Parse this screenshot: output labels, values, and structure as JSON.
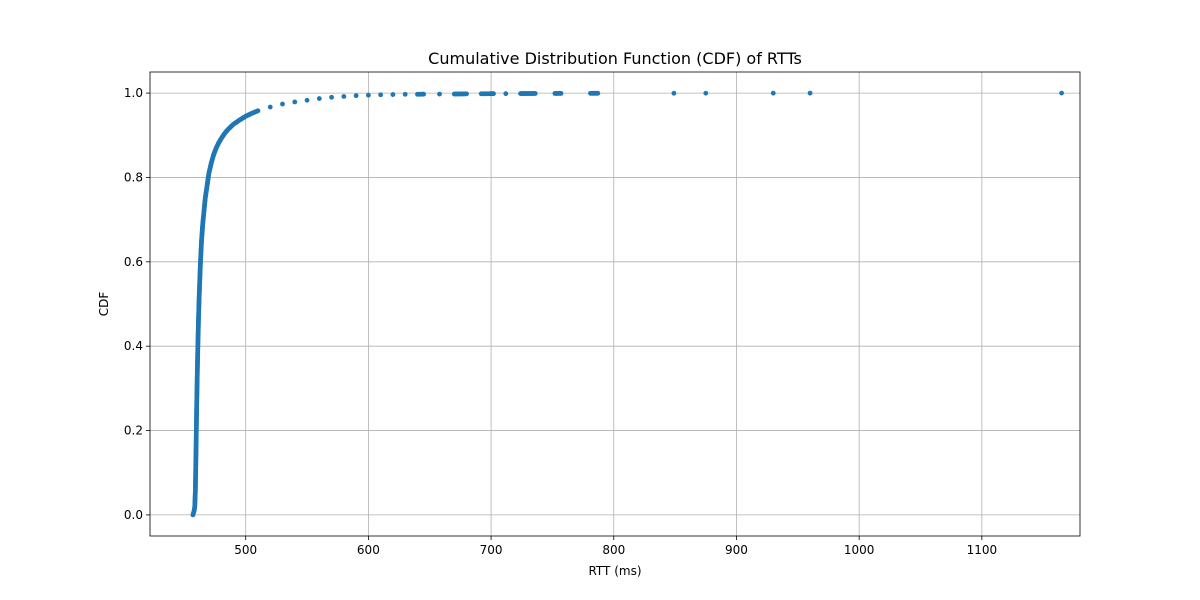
{
  "chart_data": {
    "type": "scatter",
    "title": "Cumulative Distribution Function (CDF) of RTTs",
    "xlabel": "RTT (ms)",
    "ylabel": "CDF",
    "xlim": [
      422,
      1180
    ],
    "ylim": [
      -0.05,
      1.05
    ],
    "xticks": [
      500,
      600,
      700,
      800,
      900,
      1000,
      1100
    ],
    "xtick_labels": [
      "500",
      "600",
      "700",
      "800",
      "900",
      "1000",
      "1100"
    ],
    "yticks": [
      0.0,
      0.2,
      0.4,
      0.6,
      0.8,
      1.0
    ],
    "ytick_labels": [
      "0.0",
      "0.2",
      "0.4",
      "0.6",
      "0.8",
      "1.0"
    ],
    "grid": true,
    "marker_color": "#1f77b4",
    "series": [
      {
        "x": [
          457,
          458,
          458.5,
          459,
          459.5,
          460,
          460.5,
          461,
          461.5,
          462,
          462.5,
          463,
          463.5,
          464,
          465,
          466,
          467,
          468,
          469,
          470,
          472,
          474,
          476,
          478,
          480,
          483,
          486,
          490,
          495,
          500,
          505,
          510,
          520,
          530,
          540,
          550,
          560,
          570,
          580,
          590,
          600,
          610,
          620,
          630,
          640,
          645,
          658,
          670,
          675,
          680,
          692,
          698,
          702,
          712,
          724,
          727,
          733,
          736,
          752,
          757,
          781,
          787,
          849,
          875,
          930,
          960,
          1165
        ],
        "y": [
          0.0,
          0.01,
          0.02,
          0.06,
          0.15,
          0.25,
          0.33,
          0.4,
          0.46,
          0.51,
          0.55,
          0.59,
          0.62,
          0.65,
          0.69,
          0.72,
          0.75,
          0.77,
          0.79,
          0.81,
          0.835,
          0.855,
          0.87,
          0.882,
          0.892,
          0.905,
          0.915,
          0.926,
          0.936,
          0.945,
          0.952,
          0.958,
          0.967,
          0.974,
          0.979,
          0.983,
          0.987,
          0.99,
          0.992,
          0.994,
          0.995,
          0.996,
          0.9965,
          0.997,
          0.9972,
          0.9974,
          0.9976,
          0.9978,
          0.998,
          0.9982,
          0.9984,
          0.9985,
          0.9986,
          0.9987,
          0.9988,
          0.9989,
          0.999,
          0.9991,
          0.9992,
          0.9993,
          0.9994,
          0.9995,
          0.9996,
          0.9997,
          0.9998,
          0.9999,
          1.0
        ]
      }
    ]
  }
}
